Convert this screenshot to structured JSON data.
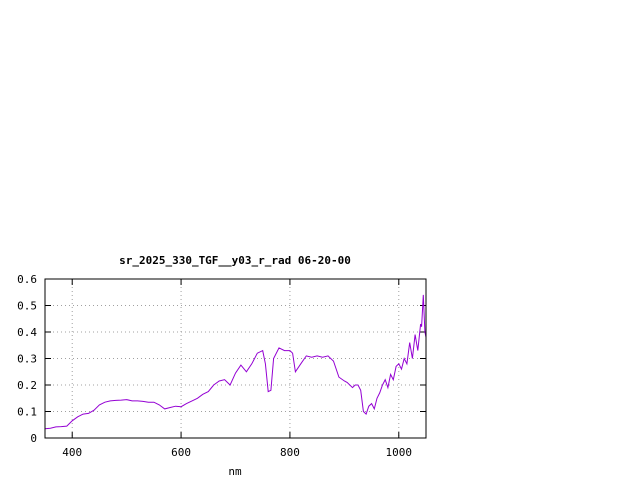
{
  "chart_data": {
    "type": "line",
    "title": "sr_2025_330_TGF__y03_r_rad 06-20-00",
    "xlabel": "nm",
    "ylabel": "",
    "xlim": [
      350,
      1050
    ],
    "ylim": [
      0,
      0.6
    ],
    "x_ticks": [
      400,
      600,
      800,
      1000
    ],
    "y_ticks": [
      0,
      0.1,
      0.2,
      0.3,
      0.4,
      0.5,
      0.6
    ],
    "x_tick_labels": [
      "400",
      "600",
      "800",
      "1000"
    ],
    "y_tick_labels": [
      "0",
      "0.1",
      "0.2",
      "0.3",
      "0.4",
      "0.5",
      "0.6"
    ],
    "grid": true,
    "line_color": "#9400d3",
    "series": [
      {
        "x": [
          350,
          360,
          370,
          380,
          390,
          400,
          410,
          420,
          430,
          440,
          450,
          460,
          470,
          480,
          490,
          500,
          510,
          520,
          530,
          540,
          550,
          560,
          570,
          580,
          590,
          600,
          610,
          620,
          630,
          640,
          650,
          660,
          670,
          680,
          690,
          700,
          710,
          720,
          730,
          740,
          750,
          755,
          760,
          765,
          770,
          780,
          790,
          800,
          805,
          810,
          820,
          830,
          840,
          850,
          860,
          870,
          880,
          890,
          900,
          905,
          910,
          915,
          920,
          925,
          930,
          935,
          940,
          945,
          950,
          955,
          960,
          965,
          970,
          975,
          980,
          985,
          990,
          995,
          1000,
          1005,
          1010,
          1015,
          1020,
          1025,
          1030,
          1035,
          1040,
          1042,
          1045,
          1048,
          1050
        ],
        "y": [
          0.035,
          0.037,
          0.042,
          0.043,
          0.045,
          0.065,
          0.08,
          0.09,
          0.093,
          0.105,
          0.125,
          0.135,
          0.14,
          0.142,
          0.143,
          0.145,
          0.14,
          0.14,
          0.138,
          0.135,
          0.135,
          0.125,
          0.11,
          0.115,
          0.12,
          0.118,
          0.13,
          0.14,
          0.15,
          0.165,
          0.175,
          0.2,
          0.215,
          0.22,
          0.2,
          0.245,
          0.275,
          0.25,
          0.28,
          0.32,
          0.33,
          0.28,
          0.175,
          0.18,
          0.3,
          0.34,
          0.33,
          0.33,
          0.32,
          0.25,
          0.28,
          0.31,
          0.305,
          0.31,
          0.305,
          0.31,
          0.29,
          0.23,
          0.215,
          0.21,
          0.2,
          0.19,
          0.2,
          0.2,
          0.18,
          0.1,
          0.09,
          0.12,
          0.13,
          0.11,
          0.15,
          0.17,
          0.2,
          0.22,
          0.19,
          0.24,
          0.22,
          0.27,
          0.28,
          0.26,
          0.3,
          0.28,
          0.36,
          0.3,
          0.39,
          0.33,
          0.43,
          0.42,
          0.54,
          0.4,
          0.38
        ]
      }
    ]
  }
}
